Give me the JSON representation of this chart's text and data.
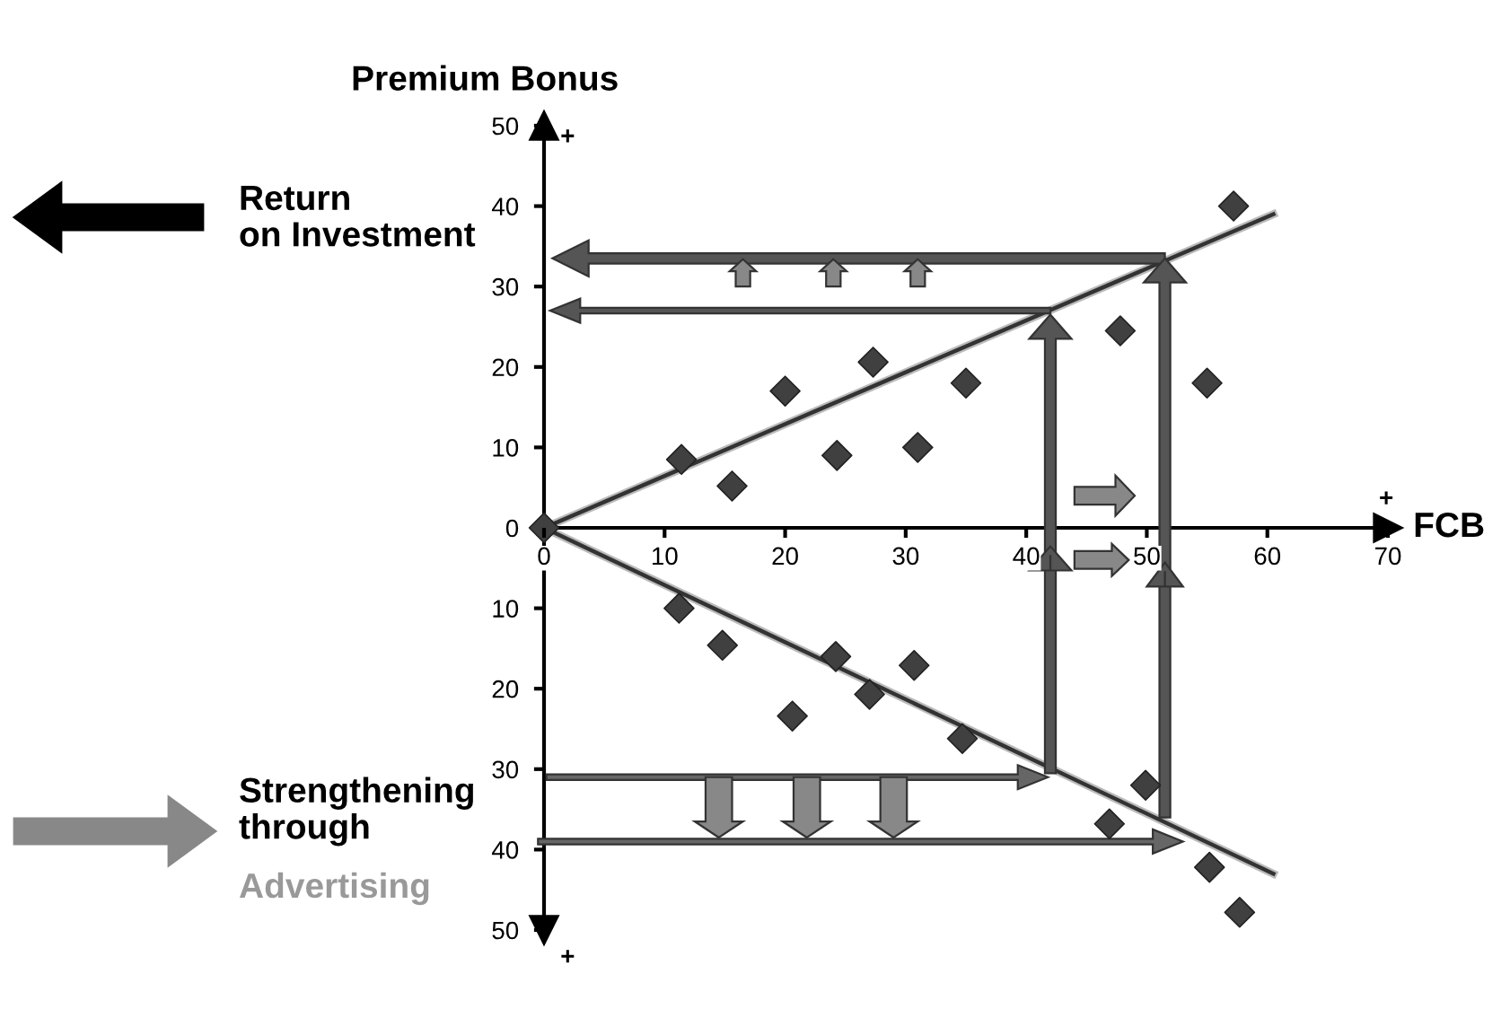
{
  "chart_data": {
    "type": "scatter",
    "xlabel": "FCB",
    "ylabel": "Premium Bonus",
    "xlim": [
      0,
      70
    ],
    "ylim": [
      -50,
      50
    ],
    "xticks": [
      0,
      10,
      20,
      30,
      40,
      50,
      60,
      70
    ],
    "yticks": [
      {
        "value": -50,
        "label": "50"
      },
      {
        "value": -40,
        "label": "40"
      },
      {
        "value": -30,
        "label": "30"
      },
      {
        "value": -20,
        "label": "20"
      },
      {
        "value": -10,
        "label": "10"
      },
      0,
      10,
      20,
      30,
      40,
      50
    ],
    "grid": false,
    "legend": false,
    "marker": "diamond",
    "series": [
      {
        "color": "#404040",
        "x": [
          0,
          11.4,
          15.6,
          20,
          24.3,
          27.3,
          31,
          35,
          47.8,
          55,
          57.2
        ],
        "values": [
          0,
          8.5,
          5.2,
          17,
          9,
          20.6,
          10,
          18,
          24.5,
          18,
          40
        ]
      },
      {
        "color": "#404040",
        "x": [
          11.2,
          14.8,
          20.6,
          24.2,
          27,
          30.7,
          34.7,
          49.9,
          46.9,
          55.2,
          57.7
        ],
        "values": [
          -10,
          -14.6,
          -23.4,
          -16,
          -20.7,
          -17.1,
          -26.2,
          -32,
          -36.8,
          -42.2,
          -47.8
        ]
      },
      {
        "type": "line",
        "color": "#333333",
        "x": [
          0,
          60.5
        ],
        "values": [
          0,
          39
        ],
        "marker": "none"
      },
      {
        "type": "line",
        "color": "#333333",
        "x": [
          0,
          60.5
        ],
        "values": [
          0,
          -43
        ],
        "marker": "none"
      }
    ],
    "annotations": [
      "+",
      "+",
      "+",
      "Return on Investment",
      "Strengthening through",
      "Advertising"
    ]
  }
}
